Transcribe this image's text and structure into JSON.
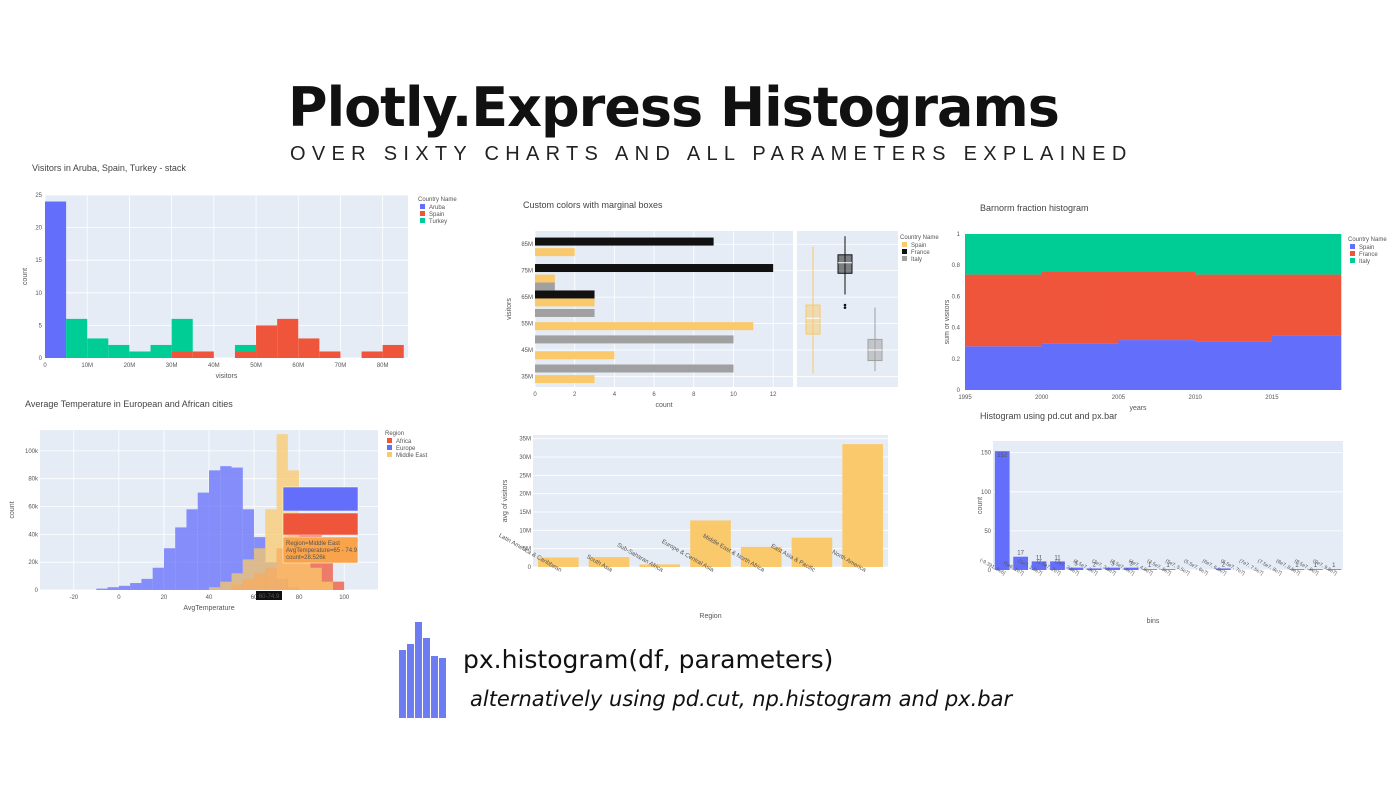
{
  "header": {
    "title": "Plotly.Express Histograms",
    "subtitle": "OVER SIXTY CHARTS AND ALL PARAMETERS EXPLAINED"
  },
  "footer": {
    "line1": "px.histogram(df, parameters)",
    "line2": "alternatively using pd.cut, np.histogram and px.bar",
    "icon_color": "#6E7CF2"
  },
  "chart_data": [
    {
      "id": "stack",
      "type": "bar",
      "title": "Visitors in Aruba, Spain, Turkey - stack",
      "xlabel": "visitors",
      "ylabel": "count",
      "xlim": [
        0,
        86
      ],
      "ylim": [
        0,
        25
      ],
      "xticks": [
        "0",
        "10M",
        "20M",
        "30M",
        "40M",
        "50M",
        "60M",
        "70M",
        "80M"
      ],
      "xtick_values": [
        0,
        10,
        20,
        30,
        40,
        50,
        60,
        70,
        80
      ],
      "yticks": [
        0,
        5,
        10,
        15,
        20,
        25
      ],
      "legend_title": "Country Name",
      "legend_position": "top-right",
      "series": [
        {
          "name": "Aruba",
          "color": "#636EFA",
          "bars": [
            [
              0,
              5,
              24
            ]
          ]
        },
        {
          "name": "Spain",
          "color": "#EF553B",
          "bars": [
            [
              30,
              35,
              1
            ],
            [
              35,
              40,
              1
            ],
            [
              45,
              50,
              1
            ],
            [
              50,
              55,
              5
            ],
            [
              55,
              60,
              6
            ],
            [
              60,
              65,
              3
            ],
            [
              65,
              70,
              1
            ],
            [
              75,
              80,
              1
            ],
            [
              80,
              85,
              2
            ]
          ]
        },
        {
          "name": "Turkey",
          "color": "#00CC96",
          "bars": [
            [
              5,
              10,
              6
            ],
            [
              10,
              15,
              3
            ],
            [
              15,
              20,
              2
            ],
            [
              20,
              25,
              1
            ],
            [
              25,
              30,
              2
            ],
            [
              30,
              35,
              5
            ],
            [
              45,
              50,
              1
            ]
          ]
        }
      ]
    },
    {
      "id": "marginal",
      "type": "bar",
      "title": "Custom colors with marginal boxes",
      "xlabel": "count",
      "ylabel": "visitors",
      "xlim": [
        0,
        13
      ],
      "xticks": [
        0,
        2,
        4,
        6,
        8,
        10,
        12
      ],
      "yticks": [
        "35M",
        "45M",
        "55M",
        "65M",
        "75M",
        "85M"
      ],
      "ytick_values": [
        35,
        45,
        55,
        65,
        75,
        85
      ],
      "ylim": [
        31,
        90
      ],
      "legend_title": "Country Name",
      "legend_position": "top-right",
      "series": [
        {
          "name": "Spain",
          "color": "#F9C96B",
          "bars": [
            [
              34,
              3
            ],
            [
              43,
              4
            ],
            [
              54,
              11
            ],
            [
              63,
              3
            ],
            [
              72,
              1
            ],
            [
              82,
              2
            ]
          ]
        },
        {
          "name": "France",
          "color": "#111111",
          "bars": [
            [
              66,
              3
            ],
            [
              76,
              12
            ],
            [
              86,
              9
            ]
          ]
        },
        {
          "name": "Italy",
          "color": "#A0A0A0",
          "bars": [
            [
              38,
              10
            ],
            [
              49,
              10
            ],
            [
              59,
              3
            ],
            [
              69,
              1
            ]
          ]
        }
      ],
      "boxes": [
        {
          "series": "Spain",
          "min": 36,
          "q1": 51,
          "median": 57,
          "q3": 62,
          "max": 84
        },
        {
          "series": "France",
          "min": 66,
          "q1": 74,
          "median": 78,
          "q3": 81,
          "max": 88,
          "outliers": [
            61,
            62
          ]
        },
        {
          "series": "Italy",
          "min": 37,
          "q1": 41,
          "median": 45,
          "q3": 49,
          "max": 61
        }
      ]
    },
    {
      "id": "barnorm",
      "type": "area",
      "title": "Barnorm fraction histogram",
      "xlabel": "years",
      "ylabel": "sum of visitors",
      "xlim": [
        1995,
        2019.5
      ],
      "ylim": [
        0,
        1
      ],
      "xticks": [
        1995,
        2000,
        2005,
        2010,
        2015
      ],
      "yticks": [
        "0",
        "0.2",
        "0.4",
        "0.6",
        "0.8",
        "1"
      ],
      "ytick_values": [
        0,
        0.2,
        0.4,
        0.6,
        0.8,
        1
      ],
      "legend_title": "Country Name",
      "legend_position": "top-right",
      "bins": [
        [
          1995,
          2000
        ],
        [
          2000,
          2005
        ],
        [
          2005,
          2010
        ],
        [
          2010,
          2015
        ],
        [
          2015,
          2019.5
        ]
      ],
      "series": [
        {
          "name": "Spain",
          "color": "#636EFA",
          "values": [
            0.28,
            0.3,
            0.32,
            0.31,
            0.35
          ]
        },
        {
          "name": "France",
          "color": "#EF553B",
          "values": [
            0.46,
            0.46,
            0.44,
            0.43,
            0.39
          ]
        },
        {
          "name": "Italy",
          "color": "#00CC96",
          "values": [
            0.26,
            0.24,
            0.24,
            0.26,
            0.26
          ]
        }
      ]
    },
    {
      "id": "temperature",
      "type": "bar",
      "title": "Average Temperature in European and African cities",
      "xlabel": "AvgTemperature",
      "ylabel": "count",
      "xlim": [
        -35,
        115
      ],
      "ylim": [
        0,
        115
      ],
      "xticks": [
        -20,
        0,
        20,
        40,
        60,
        80,
        100
      ],
      "yticks": [
        "0",
        "20k",
        "40k",
        "60k",
        "80k",
        "100k"
      ],
      "ytick_values": [
        0,
        20,
        40,
        60,
        80,
        100
      ],
      "legend_title": "Region",
      "legend_position": "top-right",
      "bin_width": 5,
      "series": [
        {
          "name": "Africa",
          "color": "#EF553B",
          "bars": [
            [
              50,
              4
            ],
            [
              55,
              8
            ],
            [
              60,
              12
            ],
            [
              65,
              16
            ],
            [
              70,
              30
            ],
            [
              75,
              45
            ],
            [
              80,
              55
            ],
            [
              85,
              40
            ],
            [
              90,
              20
            ],
            [
              95,
              6
            ]
          ]
        },
        {
          "name": "Europe",
          "color": "#636EFA",
          "bars": [
            [
              -10,
              1
            ],
            [
              -5,
              2
            ],
            [
              0,
              3
            ],
            [
              5,
              5
            ],
            [
              10,
              8
            ],
            [
              15,
              16
            ],
            [
              20,
              30
            ],
            [
              25,
              45
            ],
            [
              30,
              58
            ],
            [
              35,
              70
            ],
            [
              40,
              86
            ],
            [
              45,
              89
            ],
            [
              50,
              88
            ],
            [
              55,
              58
            ],
            [
              60,
              38
            ],
            [
              65,
              20
            ],
            [
              70,
              8
            ],
            [
              75,
              2
            ]
          ]
        },
        {
          "name": "Middle East",
          "color": "#F9C96B",
          "bars": [
            [
              40,
              2
            ],
            [
              45,
              6
            ],
            [
              50,
              12
            ],
            [
              55,
              22
            ],
            [
              60,
              30
            ],
            [
              65,
              58
            ],
            [
              70,
              112
            ],
            [
              75,
              86
            ],
            [
              80,
              36
            ],
            [
              85,
              16
            ],
            [
              90,
              6
            ]
          ]
        }
      ],
      "tooltip_lines": [
        "Region=Middle East",
        "AvgTemperature=65 - 74.9",
        "count=28.526k"
      ],
      "hover_label": "60-74.9"
    },
    {
      "id": "regions",
      "type": "bar",
      "title": "",
      "xlabel": "Region",
      "ylabel": "avg of visitors",
      "ylim": [
        0,
        36
      ],
      "yticks": [
        "0",
        "5M",
        "10M",
        "15M",
        "20M",
        "25M",
        "30M",
        "35M"
      ],
      "ytick_values": [
        0,
        5,
        10,
        15,
        20,
        25,
        30,
        35
      ],
      "color": "#F9C96B",
      "categories": [
        "Latin America & Caribbean",
        "South Asia",
        "Sub-Saharan Africa",
        "Europe & Central Asia",
        "Middle East & North Africa",
        "East Asia & Pacific",
        "North America"
      ],
      "values": [
        2.6,
        2.7,
        0.7,
        12.7,
        5.5,
        8.0,
        33.5
      ]
    },
    {
      "id": "cut",
      "type": "bar",
      "title": "Histogram using pd.cut and px.bar",
      "xlabel": "bins",
      "ylabel": "count",
      "ylim": [
        0,
        165
      ],
      "yticks": [
        0,
        50,
        100,
        150
      ],
      "color": "#636EFA",
      "values": [
        152,
        17,
        11,
        11,
        3,
        2,
        3,
        3,
        1,
        1,
        0,
        0,
        2,
        0,
        0,
        0,
        1,
        1,
        1
      ],
      "data_labels": [
        "152",
        "17",
        "11",
        "11",
        "3",
        "2",
        "3",
        "3",
        "1",
        "1",
        "",
        "",
        "2",
        "",
        "",
        "",
        "1",
        "1",
        "1"
      ],
      "categories": [
        "(-9.391, 5e6]",
        "(5e6, 1e7]",
        "(1e7, 1.5e7]",
        "(1.5e7, 2e7]",
        "(2e7, 2.5e7]",
        "(2.5e7, 3e7]",
        "(3e7, 3.5e7]",
        "(3.5e7, 4e7]",
        "(4e7, 4.5e7]",
        "(4.5e7, 5e7]",
        "(5e7, 5.5e7]",
        "(5.5e7, 6e7]",
        "(6e7, 6.5e7]",
        "(6.5e7, 7e7]",
        "(7e7, 7.5e7]",
        "(7.5e7, 8e7]",
        "(8e7, 8.5e7]",
        "(8.5e7, 9e7]",
        "(9e7, 9.5e7]"
      ]
    }
  ]
}
